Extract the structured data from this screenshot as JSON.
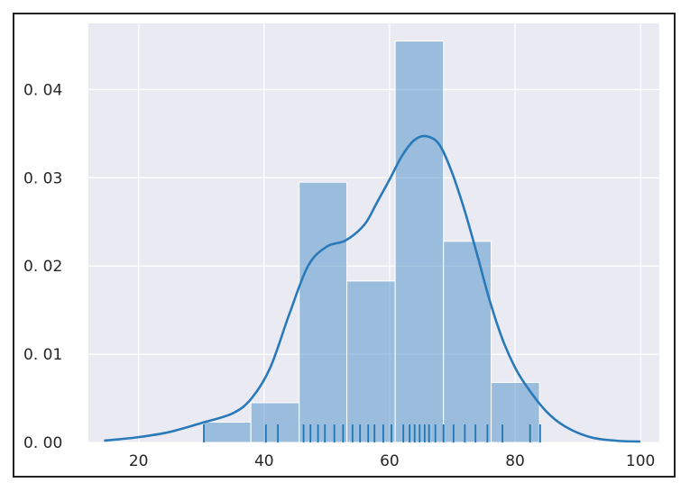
{
  "chart_data": {
    "type": "bar",
    "subtype": "histogram with KDE curve and rug plot",
    "title": "",
    "xlabel": "",
    "ylabel": "",
    "xlim": [
      12,
      103
    ],
    "ylim": [
      0,
      0.0475
    ],
    "xticks": [
      20,
      40,
      60,
      80,
      100
    ],
    "xtick_labels": [
      "20",
      "40",
      "60",
      "80",
      "100"
    ],
    "yticks": [
      0.0,
      0.01,
      0.02,
      0.03,
      0.04
    ],
    "ytick_labels": [
      "0. 00",
      "0. 01",
      "0. 02",
      "0. 03",
      "0. 04"
    ],
    "grid": true,
    "legend": "none",
    "histogram": {
      "bins": [
        {
          "x0": 30.3,
          "x1": 37.9,
          "value": 0.0023
        },
        {
          "x0": 37.9,
          "x1": 45.6,
          "value": 0.0045
        },
        {
          "x0": 45.6,
          "x1": 53.2,
          "value": 0.0295
        },
        {
          "x0": 53.2,
          "x1": 60.9,
          "value": 0.0183
        },
        {
          "x0": 60.9,
          "x1": 68.6,
          "value": 0.0455
        },
        {
          "x0": 68.6,
          "x1": 76.2,
          "value": 0.0228
        },
        {
          "x0": 76.2,
          "x1": 83.9,
          "value": 0.0068
        }
      ]
    },
    "kde": {
      "x": [
        14.5,
        20,
        25,
        30,
        35,
        38,
        41,
        44,
        47,
        50,
        53,
        56,
        58,
        60,
        62,
        64,
        66,
        68,
        70,
        72,
        74,
        76,
        78,
        80,
        82,
        85,
        88,
        92,
        96,
        100
      ],
      "y": [
        0.0002,
        0.0006,
        0.0012,
        0.0022,
        0.0033,
        0.005,
        0.0085,
        0.0145,
        0.02,
        0.0222,
        0.0229,
        0.0247,
        0.0272,
        0.0298,
        0.0325,
        0.0343,
        0.0347,
        0.0337,
        0.0305,
        0.0262,
        0.0212,
        0.016,
        0.0117,
        0.0085,
        0.0062,
        0.0035,
        0.0018,
        0.0006,
        0.0002,
        0.0001
      ]
    },
    "rug": {
      "x": [
        30.4,
        40.3,
        42.2,
        46.3,
        47.4,
        48.6,
        49.7,
        51.2,
        52.6,
        54.1,
        55.3,
        56.6,
        57.6,
        59.0,
        60.3,
        62.2,
        63.2,
        64.0,
        64.8,
        65.6,
        66.3,
        67.3,
        68.6,
        70.2,
        72.0,
        73.7,
        75.6,
        78.0,
        82.4,
        84.0
      ]
    },
    "colors": {
      "plot_background": "#eaeaf2",
      "grid": "#ffffff",
      "bar_fill": "#4c8fc7",
      "bar_opacity": 0.5,
      "kde_line": "#2a7ab9",
      "rug": "#1f77b4"
    }
  }
}
